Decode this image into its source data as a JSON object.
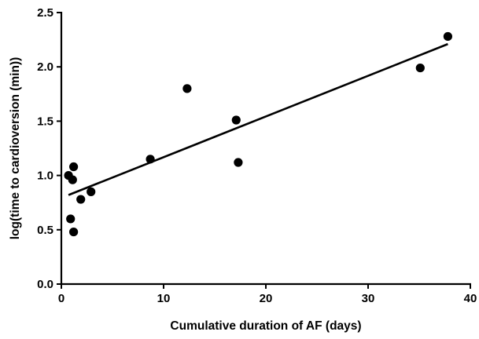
{
  "chart_data": {
    "type": "scatter",
    "xlabel": "Cumulative duration of AF (days)",
    "ylabel": "log(time to cardioversion (min))",
    "xlim": [
      0,
      40
    ],
    "ylim": [
      0.0,
      2.5
    ],
    "x_ticks": [
      "0",
      "10",
      "20",
      "30",
      "40"
    ],
    "y_ticks": [
      "0.0",
      "0.5",
      "1.0",
      "1.5",
      "2.0",
      "2.5"
    ],
    "grid": false,
    "series": [
      {
        "points": [
          {
            "x": 0.7,
            "y": 1.0
          },
          {
            "x": 0.9,
            "y": 0.6
          },
          {
            "x": 1.1,
            "y": 0.96
          },
          {
            "x": 1.2,
            "y": 1.08
          },
          {
            "x": 1.2,
            "y": 0.48
          },
          {
            "x": 1.9,
            "y": 0.78
          },
          {
            "x": 2.9,
            "y": 0.85
          },
          {
            "x": 8.7,
            "y": 1.15
          },
          {
            "x": 12.3,
            "y": 1.8
          },
          {
            "x": 17.1,
            "y": 1.51
          },
          {
            "x": 17.3,
            "y": 1.12
          },
          {
            "x": 35.1,
            "y": 1.99
          },
          {
            "x": 37.8,
            "y": 2.28
          }
        ]
      }
    ],
    "trendline": {
      "x": [
        0.7,
        37.8
      ],
      "y": [
        0.82,
        2.21
      ]
    }
  }
}
